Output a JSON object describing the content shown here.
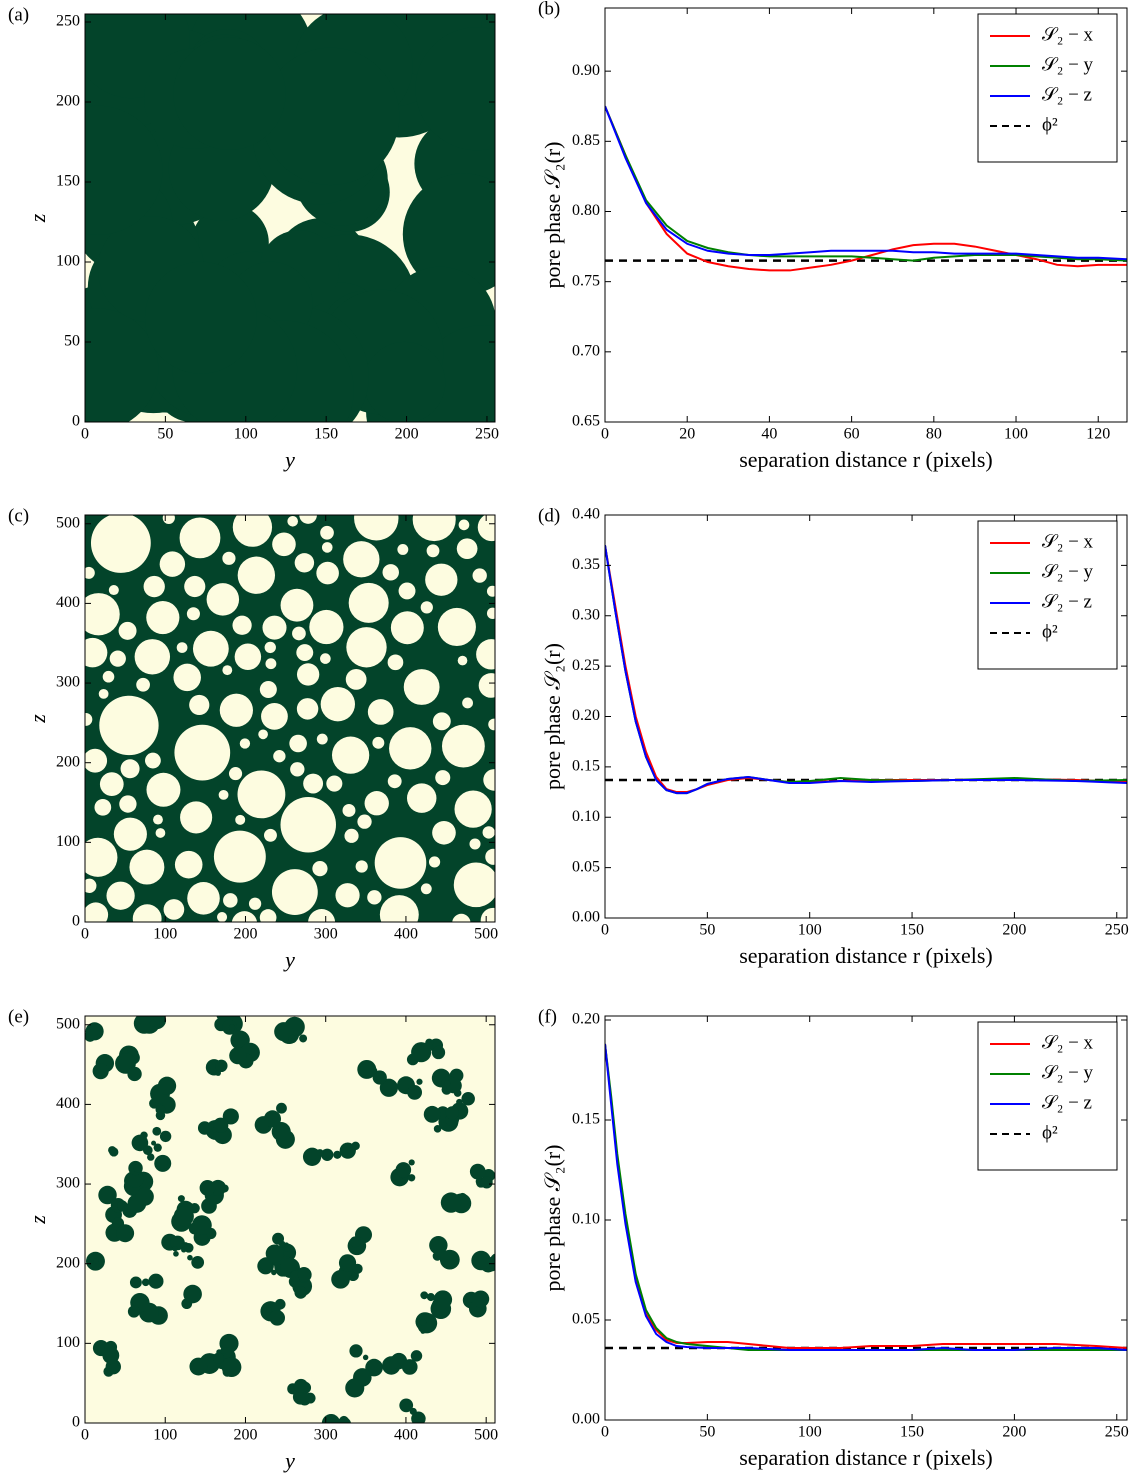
{
  "chart_data": [
    {
      "type": "image",
      "panel_label": "(a)",
      "xlabel": "y",
      "ylabel": "z",
      "phase_colors": [
        "#03442a",
        "#fdfce0"
      ],
      "xlim": [
        0,
        255
      ],
      "xticks": [
        0,
        50,
        100,
        150,
        200,
        250
      ],
      "ylim": [
        0,
        255
      ],
      "yticks": [
        0,
        50,
        100,
        150,
        200,
        250
      ]
    },
    {
      "type": "line",
      "panel_label": "(b)",
      "xlabel": "separation distance r (pixels)",
      "ylabel": "pore phase 𝒮₂(r)",
      "legend": "upper right",
      "xlim": [
        0,
        127
      ],
      "xticks": [
        0,
        20,
        40,
        60,
        80,
        100,
        120
      ],
      "ylim": [
        0.65,
        0.945
      ],
      "yticks": [
        0.65,
        {
          "value": 0.7,
          "label": "0.70"
        },
        0.75,
        {
          "value": 0.8,
          "label": "0.80"
        },
        0.85,
        {
          "value": 0.9,
          "label": "0.90"
        }
      ],
      "x": [
        0,
        5,
        10,
        15,
        20,
        25,
        30,
        35,
        40,
        45,
        50,
        55,
        60,
        65,
        70,
        75,
        80,
        85,
        90,
        95,
        100,
        105,
        110,
        115,
        120,
        127
      ],
      "series": [
        {
          "name": "𝒮₂ − x",
          "color": "#ff0000",
          "values": [
            0.875,
            0.84,
            0.806,
            0.784,
            0.77,
            0.764,
            0.761,
            0.759,
            0.758,
            0.758,
            0.76,
            0.762,
            0.765,
            0.769,
            0.773,
            0.776,
            0.777,
            0.777,
            0.775,
            0.772,
            0.769,
            0.766,
            0.762,
            0.761,
            0.762,
            0.762
          ]
        },
        {
          "name": "𝒮₂ − y",
          "color": "#008000",
          "values": [
            0.875,
            0.84,
            0.808,
            0.79,
            0.779,
            0.774,
            0.771,
            0.769,
            0.768,
            0.768,
            0.768,
            0.768,
            0.768,
            0.767,
            0.766,
            0.765,
            0.767,
            0.768,
            0.769,
            0.769,
            0.769,
            0.768,
            0.767,
            0.766,
            0.766,
            0.765
          ]
        },
        {
          "name": "𝒮₂ − z",
          "color": "#0000ff",
          "values": [
            0.875,
            0.838,
            0.806,
            0.787,
            0.777,
            0.772,
            0.77,
            0.769,
            0.769,
            0.77,
            0.771,
            0.772,
            0.772,
            0.772,
            0.772,
            0.771,
            0.771,
            0.77,
            0.77,
            0.77,
            0.77,
            0.769,
            0.768,
            0.767,
            0.767,
            0.766
          ]
        }
      ],
      "reference": {
        "name": "ϕ²",
        "color": "#000000",
        "value": 0.765
      }
    },
    {
      "type": "image",
      "panel_label": "(c)",
      "xlabel": "y",
      "ylabel": "z",
      "phase_colors": [
        "#03442a",
        "#fdfce0"
      ],
      "xlim": [
        0,
        511
      ],
      "xticks": [
        0,
        100,
        200,
        300,
        400,
        500
      ],
      "ylim": [
        0,
        511
      ],
      "yticks": [
        0,
        100,
        200,
        300,
        400,
        500
      ]
    },
    {
      "type": "line",
      "panel_label": "(d)",
      "xlabel": "separation distance r (pixels)",
      "ylabel": "pore phase 𝒮₂(r)",
      "legend": "upper right",
      "xlim": [
        0,
        255
      ],
      "xticks": [
        0,
        50,
        100,
        150,
        200,
        250
      ],
      "ylim": [
        0,
        0.4
      ],
      "yticks": [
        {
          "value": 0,
          "label": "0.00"
        },
        0.05,
        {
          "value": 0.1,
          "label": "0.10"
        },
        0.15,
        {
          "value": 0.2,
          "label": "0.20"
        },
        0.25,
        {
          "value": 0.3,
          "label": "0.30"
        },
        0.35,
        {
          "value": 0.4,
          "label": "0.40"
        }
      ],
      "x": [
        0,
        5,
        10,
        15,
        20,
        25,
        30,
        35,
        40,
        45,
        50,
        60,
        70,
        80,
        90,
        100,
        115,
        130,
        150,
        170,
        200,
        230,
        255
      ],
      "series": [
        {
          "name": "𝒮₂ − x",
          "color": "#ff0000",
          "values": [
            0.37,
            0.31,
            0.25,
            0.2,
            0.165,
            0.14,
            0.128,
            0.125,
            0.125,
            0.128,
            0.132,
            0.137,
            0.139,
            0.137,
            0.135,
            0.135,
            0.136,
            0.137,
            0.137,
            0.137,
            0.138,
            0.137,
            0.135
          ]
        },
        {
          "name": "𝒮₂ − y",
          "color": "#008000",
          "values": [
            0.37,
            0.305,
            0.245,
            0.195,
            0.16,
            0.137,
            0.127,
            0.124,
            0.124,
            0.128,
            0.133,
            0.138,
            0.14,
            0.137,
            0.135,
            0.136,
            0.139,
            0.137,
            0.136,
            0.137,
            0.139,
            0.136,
            0.137
          ]
        },
        {
          "name": "𝒮₂ − z",
          "color": "#0000ff",
          "values": [
            0.37,
            0.305,
            0.245,
            0.195,
            0.16,
            0.137,
            0.127,
            0.124,
            0.124,
            0.128,
            0.133,
            0.138,
            0.14,
            0.137,
            0.134,
            0.134,
            0.136,
            0.135,
            0.136,
            0.137,
            0.137,
            0.136,
            0.134
          ]
        }
      ],
      "reference": {
        "name": "ϕ²",
        "color": "#000000",
        "value": 0.137
      }
    },
    {
      "type": "image",
      "panel_label": "(e)",
      "xlabel": "y",
      "ylabel": "z",
      "phase_colors": [
        "#03442a",
        "#fdfce0"
      ],
      "xlim": [
        0,
        511
      ],
      "xticks": [
        0,
        100,
        200,
        300,
        400,
        500
      ],
      "ylim": [
        0,
        511
      ],
      "yticks": [
        0,
        100,
        200,
        300,
        400,
        500
      ]
    },
    {
      "type": "line",
      "panel_label": "(f)",
      "xlabel": "separation distance r (pixels)",
      "ylabel": "pore phase 𝒮₂(r)",
      "legend": "upper right",
      "xlim": [
        0,
        255
      ],
      "xticks": [
        0,
        50,
        100,
        150,
        200,
        250
      ],
      "ylim": [
        0,
        0.202
      ],
      "yticks": [
        {
          "value": 0,
          "label": "0.00"
        },
        0.05,
        {
          "value": 0.1,
          "label": "0.10"
        },
        0.15,
        {
          "value": 0.2,
          "label": "0.20"
        }
      ],
      "x": [
        0,
        3,
        6,
        10,
        15,
        20,
        25,
        30,
        35,
        40,
        50,
        60,
        70,
        80,
        90,
        100,
        115,
        130,
        150,
        165,
        180,
        200,
        220,
        240,
        255
      ],
      "series": [
        {
          "name": "𝒮₂ − x",
          "color": "#ff0000",
          "values": [
            0.188,
            0.16,
            0.13,
            0.1,
            0.07,
            0.053,
            0.045,
            0.04,
            0.0385,
            0.0385,
            0.039,
            0.039,
            0.038,
            0.037,
            0.036,
            0.036,
            0.036,
            0.037,
            0.037,
            0.038,
            0.038,
            0.038,
            0.038,
            0.037,
            0.036
          ]
        },
        {
          "name": "𝒮₂ − y",
          "color": "#008000",
          "values": [
            0.188,
            0.162,
            0.133,
            0.103,
            0.073,
            0.055,
            0.046,
            0.041,
            0.039,
            0.038,
            0.037,
            0.036,
            0.035,
            0.035,
            0.035,
            0.035,
            0.035,
            0.035,
            0.035,
            0.035,
            0.035,
            0.035,
            0.035,
            0.035,
            0.035
          ]
        },
        {
          "name": "𝒮₂ − z",
          "color": "#0000ff",
          "values": [
            0.188,
            0.158,
            0.128,
            0.098,
            0.069,
            0.052,
            0.043,
            0.039,
            0.037,
            0.0365,
            0.036,
            0.036,
            0.036,
            0.0355,
            0.035,
            0.035,
            0.035,
            0.035,
            0.035,
            0.036,
            0.035,
            0.035,
            0.036,
            0.036,
            0.035
          ]
        }
      ],
      "reference": {
        "name": "ϕ²",
        "color": "#000000",
        "value": 0.036
      }
    }
  ]
}
